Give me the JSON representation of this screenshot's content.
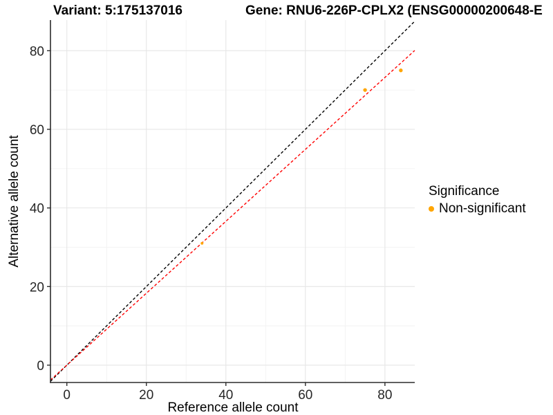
{
  "header": {
    "variant_title": "Variant: 5:175137016",
    "gene_title": "Gene: RNU6-226P-CPLX2 (ENSG00000200648-E"
  },
  "chart_data": {
    "type": "scatter",
    "title_left": "Variant: 5:175137016",
    "title_right": "Gene: RNU6-226P-CPLX2 (ENSG00000200648-E",
    "xlabel": "Reference allele count",
    "ylabel": "Alternative allele count",
    "xlim": [
      -4.12,
      87.5
    ],
    "ylim": [
      -4.41,
      87.8
    ],
    "x_ticks": [
      0,
      20,
      40,
      60,
      80
    ],
    "y_ticks": [
      0,
      20,
      40,
      60,
      80
    ],
    "x_minor_ticks": [
      10,
      30,
      50,
      70
    ],
    "y_minor_ticks": [
      10,
      30,
      50,
      70
    ],
    "grid": "on",
    "points": [
      {
        "x": 34,
        "y": 31,
        "r": 2.0,
        "series": "Non-significant"
      },
      {
        "x": 75,
        "y": 70,
        "r": 2.7,
        "series": "Non-significant"
      },
      {
        "x": 84,
        "y": 75,
        "r": 2.7,
        "series": "Non-significant"
      }
    ],
    "lines": [
      {
        "name": "identity-line",
        "slope": 1,
        "intercept": 0,
        "color": "#000000",
        "dash": "4 3"
      },
      {
        "name": "fit-line",
        "slope": 0.915,
        "intercept": 0,
        "color": "#FF0000",
        "dash": "4 3"
      }
    ],
    "legend": {
      "title": "Significance",
      "position": "right",
      "items": [
        {
          "label": "Non-significant",
          "color": "#FFA500"
        }
      ]
    },
    "colors": {
      "point": "#FFA500",
      "grid_major": "#E6E6E6",
      "grid_minor": "#F2F2F2",
      "axis_line": "#2B2B2B",
      "tick_text": "#262626"
    }
  }
}
